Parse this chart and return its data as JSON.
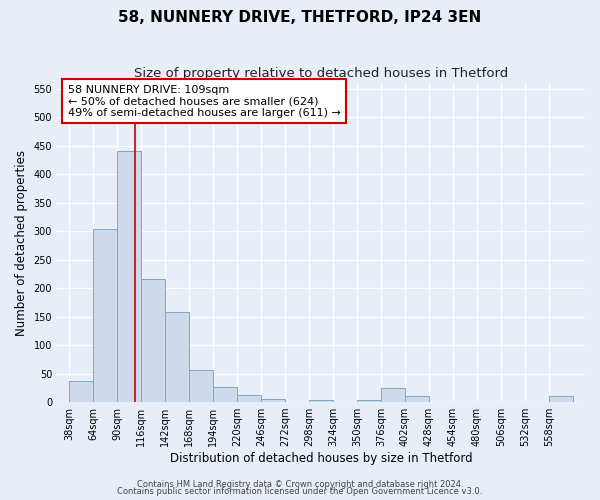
{
  "title": "58, NUNNERY DRIVE, THETFORD, IP24 3EN",
  "subtitle": "Size of property relative to detached houses in Thetford",
  "xlabel": "Distribution of detached houses by size in Thetford",
  "ylabel": "Number of detached properties",
  "bar_edges": [
    38,
    64,
    90,
    116,
    142,
    168,
    194,
    220,
    246,
    272,
    298,
    324,
    350,
    376,
    402,
    428,
    454,
    480,
    506,
    532,
    558
  ],
  "bar_heights": [
    37,
    303,
    441,
    216,
    158,
    57,
    26,
    12,
    5,
    0,
    4,
    0,
    3,
    25,
    11,
    0,
    0,
    0,
    0,
    0,
    10
  ],
  "bar_color": "#ccdaec",
  "bar_edgecolor": "#7aaac8",
  "vline_x": 109,
  "vline_color": "#cc0000",
  "annotation_line1": "58 NUNNERY DRIVE: 109sqm",
  "annotation_line2": "← 50% of detached houses are smaller (624)",
  "annotation_line3": "49% of semi-detached houses are larger (611) →",
  "ylim": [
    0,
    560
  ],
  "yticks": [
    0,
    50,
    100,
    150,
    200,
    250,
    300,
    350,
    400,
    450,
    500,
    550
  ],
  "bg_color": "#e8eef8",
  "plot_bg_color": "#e8eef8",
  "footer_line1": "Contains HM Land Registry data © Crown copyright and database right 2024.",
  "footer_line2": "Contains public sector information licensed under the Open Government Licence v3.0.",
  "title_fontsize": 11,
  "subtitle_fontsize": 9.5,
  "tick_fontsize": 7,
  "ylabel_fontsize": 8.5,
  "xlabel_fontsize": 8.5,
  "footer_fontsize": 6
}
